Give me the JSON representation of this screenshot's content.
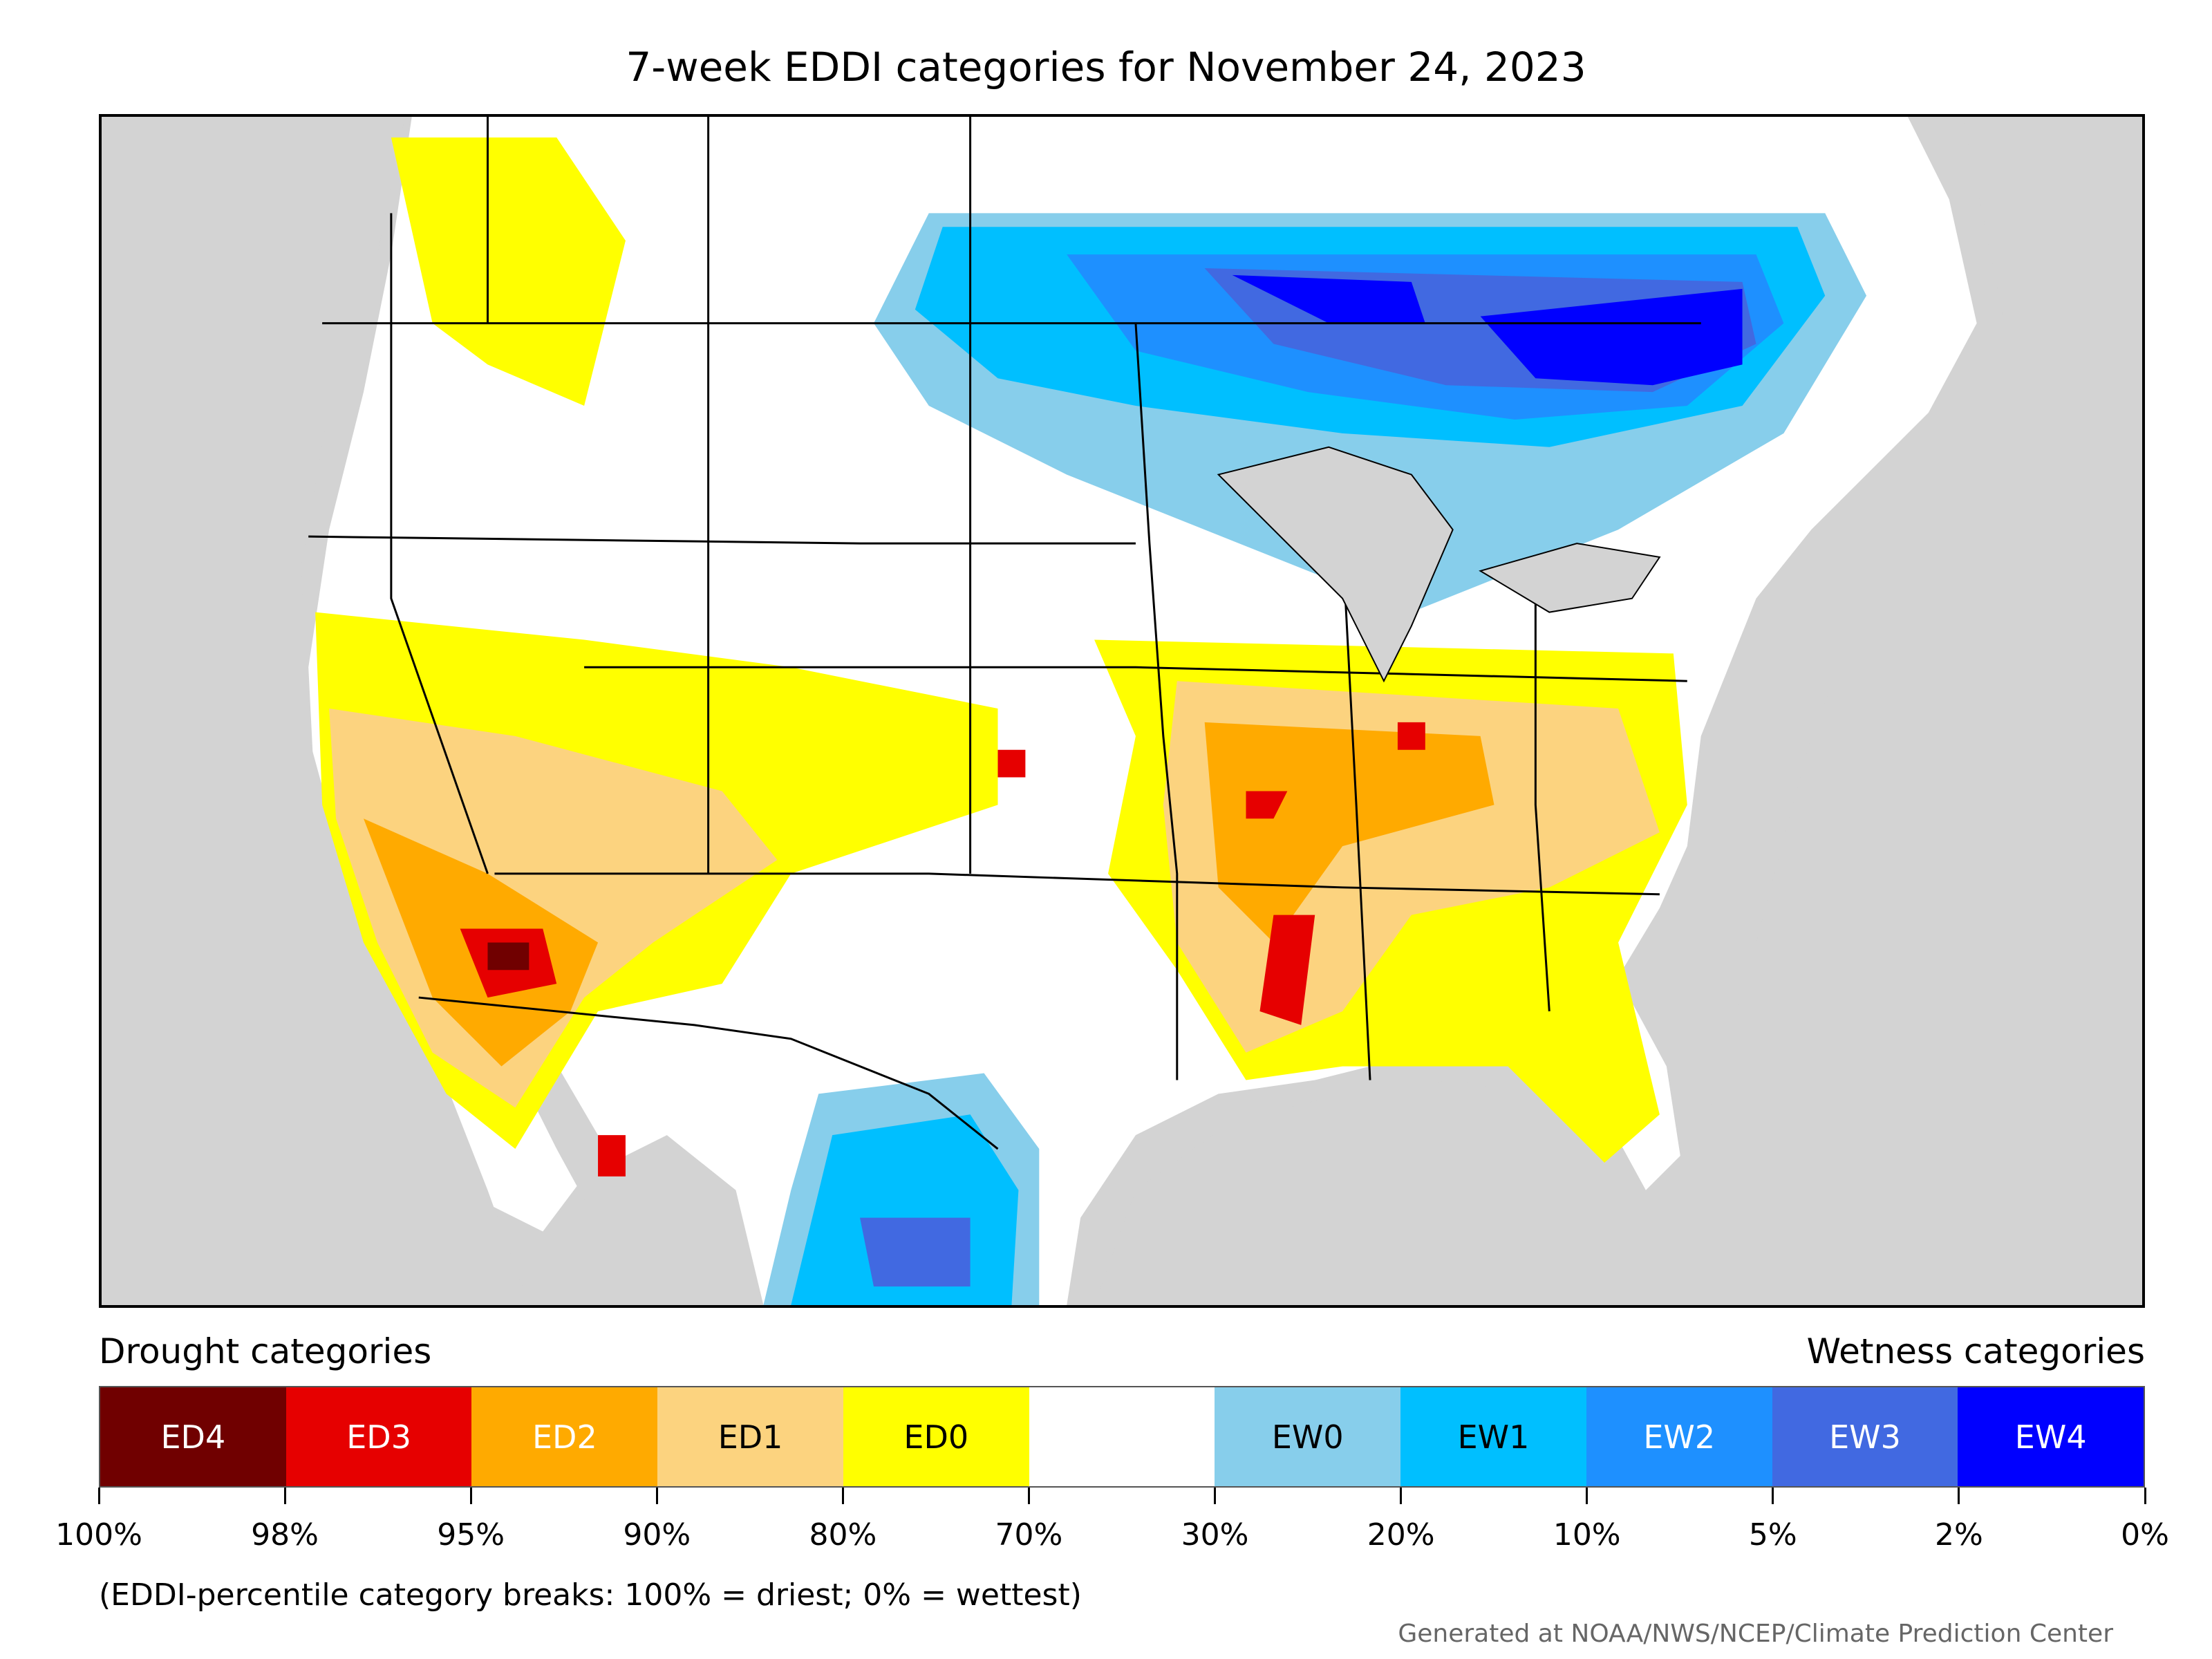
{
  "title": "7-week EDDI categories for November 24, 2023",
  "map": {
    "name": "EDDI category map of the contiguous United States, southern Canada and northern Mexico",
    "colors": {
      "background_land_outside": "#d3d3d3",
      "water": "#d3d3d3",
      "ED4": "#700000",
      "ED3": "#e60000",
      "ED2": "#ffaa00",
      "ED1": "#fcd37f",
      "ED0": "#ffff00",
      "neutral": "#ffffff",
      "EW0": "#87ceeb",
      "EW1": "#00bfff",
      "EW2": "#1e90ff",
      "EW3": "#4169e1",
      "EW4": "#0000ff"
    }
  },
  "legend": {
    "drought_heading": "Drought categories",
    "wetness_heading": "Wetness categories",
    "categories": [
      {
        "label": "ED4",
        "color": "#700000",
        "text_color": "#ffffff"
      },
      {
        "label": "ED3",
        "color": "#e60000",
        "text_color": "#ffffff"
      },
      {
        "label": "ED2",
        "color": "#ffaa00",
        "text_color": "#ffffff"
      },
      {
        "label": "ED1",
        "color": "#fcd37f",
        "text_color": "#000000"
      },
      {
        "label": "ED0",
        "color": "#ffff00",
        "text_color": "#000000"
      },
      {
        "label": "",
        "color": "#ffffff",
        "text_color": "#000000"
      },
      {
        "label": "EW0",
        "color": "#87ceeb",
        "text_color": "#000000"
      },
      {
        "label": "EW1",
        "color": "#00bfff",
        "text_color": "#000000"
      },
      {
        "label": "EW2",
        "color": "#1e90ff",
        "text_color": "#ffffff"
      },
      {
        "label": "EW3",
        "color": "#4169e1",
        "text_color": "#ffffff"
      },
      {
        "label": "EW4",
        "color": "#0000ff",
        "text_color": "#ffffff"
      }
    ],
    "breaks": [
      "100%",
      "98%",
      "95%",
      "90%",
      "80%",
      "70%",
      "30%",
      "20%",
      "10%",
      "5%",
      "2%",
      "0%"
    ]
  },
  "note": "(EDDI-percentile category breaks: 100% = driest; 0% = wettest)",
  "credit": "Generated at NOAA/NWS/NCEP/Climate Prediction Center"
}
